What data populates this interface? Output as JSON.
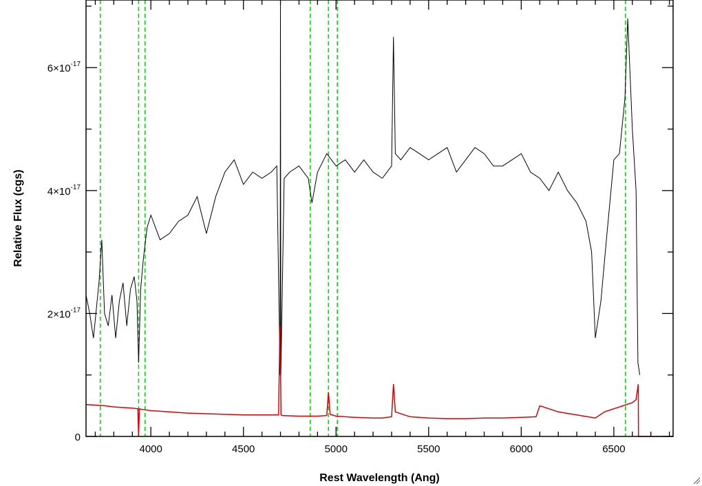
{
  "chart_data": {
    "type": "line",
    "title": "",
    "xlabel": "Rest Wavelength (Ang)",
    "ylabel": "Relative Flux (cgs)",
    "xlim": [
      3650,
      6820
    ],
    "ylim": [
      0,
      7.1e-17
    ],
    "x_ticks": [
      {
        "value": 4000,
        "label": "4000"
      },
      {
        "value": 4500,
        "label": "4500"
      },
      {
        "value": 5000,
        "label": "5000"
      },
      {
        "value": 5500,
        "label": "5500"
      },
      {
        "value": 6000,
        "label": "6000"
      },
      {
        "value": 6500,
        "label": "6500"
      }
    ],
    "y_ticks": [
      {
        "value": 0,
        "mantissa": "0",
        "exponent": ""
      },
      {
        "value": 2e-17,
        "mantissa": "2×10",
        "exponent": "-17"
      },
      {
        "value": 4e-17,
        "mantissa": "4×10",
        "exponent": "-17"
      },
      {
        "value": 6e-17,
        "mantissa": "6×10",
        "exponent": "-17"
      }
    ],
    "x_minor_step": 100,
    "y_minor_step": 1e-17,
    "grid": false,
    "legend": "none",
    "reference_lines": {
      "color": "#00dd00",
      "style": "dashed",
      "x": [
        3727,
        3934,
        3969,
        4861,
        4959,
        5007,
        6563
      ]
    },
    "series": [
      {
        "color": "#000000",
        "x": [
          3650,
          3670,
          3690,
          3710,
          3720,
          3735,
          3750,
          3770,
          3790,
          3810,
          3830,
          3850,
          3870,
          3890,
          3910,
          3925,
          3934,
          3945,
          3960,
          3980,
          4000,
          4050,
          4100,
          4150,
          4200,
          4250,
          4300,
          4350,
          4400,
          4450,
          4500,
          4550,
          4600,
          4650,
          4680,
          4698,
          4700,
          4702,
          4720,
          4750,
          4800,
          4850,
          4870,
          4900,
          4950,
          5000,
          5050,
          5100,
          5150,
          5200,
          5250,
          5300,
          5310,
          5320,
          5350,
          5400,
          5450,
          5500,
          5550,
          5600,
          5650,
          5700,
          5750,
          5800,
          5850,
          5900,
          5950,
          6000,
          6050,
          6100,
          6150,
          6200,
          6250,
          6300,
          6350,
          6380,
          6400,
          6430,
          6460,
          6500,
          6530,
          6560,
          6575,
          6600,
          6620,
          6630,
          6640
        ],
        "y": [
          2.3e-17,
          2e-17,
          1.6e-17,
          2.2e-17,
          2.5e-17,
          3.2e-17,
          2e-17,
          1.8e-17,
          2.3e-17,
          1.6e-17,
          2.2e-17,
          2.5e-17,
          1.8e-17,
          2.4e-17,
          2.6e-17,
          2.2e-17,
          1.2e-17,
          2.4e-17,
          2.9e-17,
          3.4e-17,
          3.6e-17,
          3.2e-17,
          3.3e-17,
          3.5e-17,
          3.6e-17,
          3.9e-17,
          3.3e-17,
          3.9e-17,
          4.3e-17,
          4.5e-17,
          4.1e-17,
          4.3e-17,
          4.2e-17,
          4.3e-17,
          4.4e-17,
          1e-17,
          7.1e-17,
          1e-17,
          4.2e-17,
          4.3e-17,
          4.4e-17,
          4.2e-17,
          3.8e-17,
          4.3e-17,
          4.6e-17,
          4.4e-17,
          4.5e-17,
          4.3e-17,
          4.5e-17,
          4.3e-17,
          4.2e-17,
          4.4e-17,
          6.5e-17,
          4.6e-17,
          4.5e-17,
          4.7e-17,
          4.6e-17,
          4.5e-17,
          4.6e-17,
          4.7e-17,
          4.3e-17,
          4.5e-17,
          4.7e-17,
          4.6e-17,
          4.4e-17,
          4.4e-17,
          4.5e-17,
          4.6e-17,
          4.3e-17,
          4.2e-17,
          4e-17,
          4.3e-17,
          4e-17,
          3.8e-17,
          3.5e-17,
          3e-17,
          1.6e-17,
          2.2e-17,
          3.2e-17,
          4.5e-17,
          4.6e-17,
          5.5e-17,
          6.8e-17,
          5e-17,
          4e-17,
          1.2e-17,
          1e-17
        ]
      },
      {
        "color": "#dd0000",
        "x": [
          3650,
          3700,
          3750,
          3800,
          3850,
          3900,
          3930,
          3934,
          3938,
          3950,
          4000,
          4100,
          4200,
          4300,
          4400,
          4500,
          4600,
          4690,
          4697,
          4700,
          4703,
          4710,
          4800,
          4900,
          4950,
          4959,
          4968,
          5000,
          5100,
          5200,
          5250,
          5300,
          5310,
          5320,
          5400,
          5500,
          5600,
          5700,
          5800,
          5900,
          6000,
          6080,
          6100,
          6200,
          6300,
          6400,
          6450,
          6500,
          6550,
          6600,
          6620,
          6632,
          6633,
          6700,
          6820
        ],
        "y": [
          5.2e-18,
          5.1e-18,
          5e-18,
          4.8e-18,
          4.7e-18,
          4.6e-18,
          4.5e-18,
          0.0,
          4.5e-18,
          4.4e-18,
          4.2e-18,
          4e-18,
          3.8e-18,
          3.7e-18,
          3.6e-18,
          3.5e-18,
          3.5e-18,
          3.5e-18,
          1.8e-17,
          1.2e-17,
          3.5e-18,
          3.4e-18,
          3.3e-18,
          3.3e-18,
          3.4e-18,
          7.2e-18,
          3.6e-18,
          3.3e-18,
          3.1e-18,
          3e-18,
          3e-18,
          3.2e-18,
          8.5e-18,
          4e-18,
          3.2e-18,
          3e-18,
          2.9e-18,
          2.9e-18,
          3e-18,
          3e-18,
          3.1e-18,
          3.2e-18,
          5e-18,
          4e-18,
          3.5e-18,
          3e-18,
          4e-18,
          4.5e-18,
          5e-18,
          5.5e-18,
          6e-18,
          8.5e-18,
          0.0,
          0.0,
          0.0
        ]
      }
    ]
  }
}
